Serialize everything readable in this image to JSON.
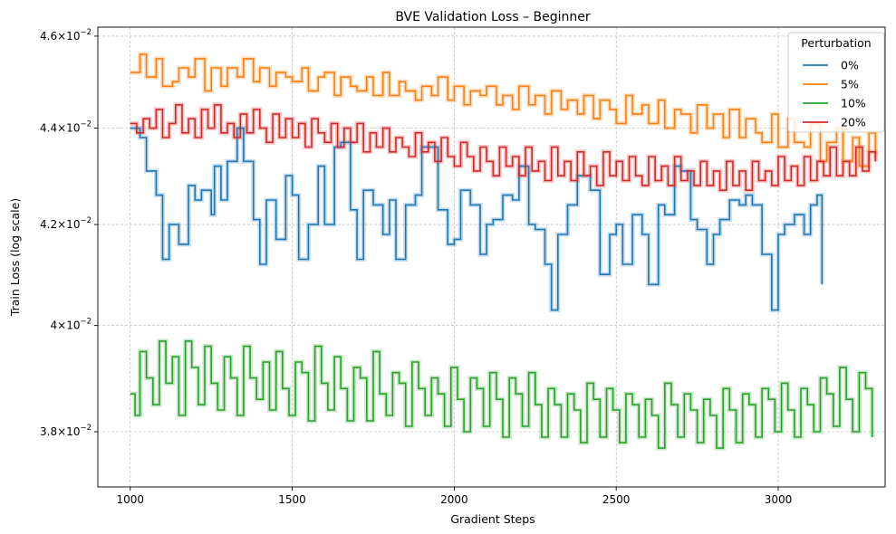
{
  "chart_data": {
    "type": "line",
    "title": "BVE Validation Loss – Beginner",
    "xlabel": "Gradient Steps",
    "ylabel": "Train Loss (log scale)",
    "yscale": "log",
    "xlim": [
      900,
      3330
    ],
    "ylim": [
      0.037,
      0.0462
    ],
    "grid": true,
    "legend_title": "Perturbation",
    "legend_position": "top-right",
    "x_ticks": [
      {
        "value": 1000,
        "label": "1000"
      },
      {
        "value": 1500,
        "label": "1500"
      },
      {
        "value": 2000,
        "label": "2000"
      },
      {
        "value": 2500,
        "label": "2500"
      },
      {
        "value": 3000,
        "label": "3000"
      }
    ],
    "y_ticks": [
      {
        "value": 0.038,
        "mantissa": "3.8",
        "label": "3.8×10⁻²"
      },
      {
        "value": 0.04,
        "mantissa": "4",
        "label": "4×10⁻²"
      },
      {
        "value": 0.042,
        "mantissa": "4.2",
        "label": "4.2×10⁻²"
      },
      {
        "value": 0.044,
        "mantissa": "4.4",
        "label": "4.4×10⁻²"
      },
      {
        "value": 0.046,
        "mantissa": "4.6",
        "label": "4.6×10⁻²"
      }
    ],
    "y_tick_base": "10",
    "y_tick_exponent": "−2",
    "series": [
      {
        "name": "0%",
        "color": "#1f77b4",
        "x": [
          1000,
          1030,
          1050,
          1080,
          1100,
          1120,
          1150,
          1180,
          1200,
          1220,
          1250,
          1260,
          1280,
          1300,
          1330,
          1350,
          1380,
          1400,
          1420,
          1450,
          1480,
          1500,
          1520,
          1550,
          1580,
          1600,
          1630,
          1650,
          1680,
          1700,
          1720,
          1750,
          1780,
          1800,
          1820,
          1850,
          1880,
          1900,
          1920,
          1950,
          1980,
          2000,
          2020,
          2050,
          2080,
          2100,
          2120,
          2150,
          2180,
          2200,
          2230,
          2250,
          2280,
          2300,
          2320,
          2350,
          2380,
          2400,
          2420,
          2450,
          2480,
          2500,
          2520,
          2550,
          2580,
          2600,
          2630,
          2650,
          2680,
          2700,
          2730,
          2750,
          2780,
          2800,
          2820,
          2850,
          2880,
          2900,
          2920,
          2950,
          2980,
          3000,
          3020,
          3050,
          3080,
          3100,
          3120,
          3135
        ],
        "values": [
          0.044,
          0.0438,
          0.0431,
          0.0426,
          0.0413,
          0.042,
          0.0416,
          0.0428,
          0.0425,
          0.0427,
          0.0422,
          0.0432,
          0.0425,
          0.0433,
          0.044,
          0.0433,
          0.0421,
          0.0412,
          0.0425,
          0.0417,
          0.043,
          0.0426,
          0.0413,
          0.042,
          0.0432,
          0.042,
          0.0436,
          0.0437,
          0.0423,
          0.0413,
          0.0427,
          0.0424,
          0.0418,
          0.0425,
          0.0413,
          0.0424,
          0.0426,
          0.0436,
          0.0436,
          0.0423,
          0.0416,
          0.0417,
          0.0427,
          0.0424,
          0.0414,
          0.042,
          0.0421,
          0.0426,
          0.0425,
          0.0432,
          0.042,
          0.0419,
          0.0412,
          0.0403,
          0.0418,
          0.0424,
          0.043,
          0.043,
          0.0427,
          0.041,
          0.0418,
          0.042,
          0.0412,
          0.0422,
          0.0418,
          0.0408,
          0.0424,
          0.0422,
          0.0432,
          0.0431,
          0.0421,
          0.0419,
          0.0412,
          0.0418,
          0.0421,
          0.0425,
          0.0424,
          0.0426,
          0.0424,
          0.0414,
          0.0403,
          0.0418,
          0.042,
          0.0422,
          0.0418,
          0.0424,
          0.0426,
          0.0408
        ]
      },
      {
        "name": "5%",
        "color": "#ff7f0e",
        "x": [
          1000,
          1030,
          1050,
          1080,
          1100,
          1130,
          1150,
          1180,
          1200,
          1230,
          1250,
          1280,
          1300,
          1330,
          1350,
          1380,
          1400,
          1430,
          1450,
          1480,
          1500,
          1530,
          1550,
          1580,
          1600,
          1630,
          1650,
          1680,
          1700,
          1730,
          1750,
          1780,
          1800,
          1830,
          1850,
          1880,
          1900,
          1930,
          1950,
          1980,
          2000,
          2030,
          2050,
          2080,
          2100,
          2130,
          2150,
          2180,
          2200,
          2230,
          2250,
          2280,
          2300,
          2330,
          2350,
          2380,
          2400,
          2430,
          2450,
          2480,
          2500,
          2530,
          2550,
          2580,
          2600,
          2630,
          2650,
          2680,
          2700,
          2730,
          2750,
          2780,
          2800,
          2830,
          2850,
          2880,
          2900,
          2930,
          2950,
          2980,
          3000,
          3030,
          3050,
          3080,
          3100,
          3130,
          3150,
          3180,
          3200,
          3230,
          3250,
          3280,
          3300
        ],
        "values": [
          0.0452,
          0.0456,
          0.0451,
          0.0455,
          0.0449,
          0.045,
          0.0453,
          0.0451,
          0.0455,
          0.0448,
          0.0453,
          0.0449,
          0.0453,
          0.0451,
          0.0455,
          0.045,
          0.0453,
          0.0449,
          0.0452,
          0.0451,
          0.045,
          0.0453,
          0.0448,
          0.0451,
          0.0452,
          0.0447,
          0.0451,
          0.0449,
          0.0448,
          0.0451,
          0.0447,
          0.0452,
          0.0447,
          0.045,
          0.0448,
          0.0446,
          0.0449,
          0.0447,
          0.0451,
          0.0446,
          0.0449,
          0.0445,
          0.0448,
          0.0447,
          0.0449,
          0.0445,
          0.0447,
          0.0444,
          0.0449,
          0.0445,
          0.0447,
          0.0443,
          0.0448,
          0.0444,
          0.0446,
          0.0443,
          0.0447,
          0.0442,
          0.0446,
          0.0444,
          0.0441,
          0.0447,
          0.0443,
          0.0445,
          0.0441,
          0.0446,
          0.044,
          0.0444,
          0.0443,
          0.0439,
          0.0445,
          0.044,
          0.0443,
          0.0438,
          0.0444,
          0.0438,
          0.0442,
          0.0439,
          0.0437,
          0.0443,
          0.0436,
          0.0442,
          0.0437,
          0.0436,
          0.0441,
          0.0433,
          0.0437,
          0.044,
          0.0433,
          0.0438,
          0.0432,
          0.0439,
          0.0434
        ]
      },
      {
        "name": "10%",
        "color": "#2ca02c",
        "x": [
          1000,
          1015,
          1030,
          1050,
          1070,
          1090,
          1110,
          1130,
          1150,
          1170,
          1190,
          1210,
          1230,
          1250,
          1270,
          1290,
          1310,
          1330,
          1350,
          1370,
          1390,
          1410,
          1430,
          1450,
          1470,
          1490,
          1510,
          1530,
          1550,
          1570,
          1590,
          1610,
          1630,
          1650,
          1670,
          1690,
          1710,
          1730,
          1750,
          1770,
          1790,
          1810,
          1830,
          1850,
          1870,
          1890,
          1910,
          1930,
          1950,
          1970,
          1990,
          2010,
          2030,
          2050,
          2070,
          2090,
          2110,
          2130,
          2150,
          2170,
          2190,
          2210,
          2230,
          2250,
          2270,
          2290,
          2310,
          2330,
          2350,
          2370,
          2390,
          2410,
          2430,
          2450,
          2470,
          2490,
          2510,
          2530,
          2550,
          2570,
          2590,
          2610,
          2630,
          2650,
          2670,
          2690,
          2710,
          2730,
          2750,
          2770,
          2790,
          2810,
          2830,
          2850,
          2870,
          2890,
          2910,
          2930,
          2950,
          2970,
          2990,
          3010,
          3030,
          3050,
          3070,
          3090,
          3110,
          3130,
          3150,
          3170,
          3190,
          3210,
          3230,
          3250,
          3270,
          3290
        ],
        "values": [
          0.0387,
          0.0383,
          0.0395,
          0.039,
          0.0385,
          0.0397,
          0.0389,
          0.0394,
          0.0383,
          0.0397,
          0.0392,
          0.0385,
          0.0396,
          0.0389,
          0.0384,
          0.0394,
          0.039,
          0.0383,
          0.0396,
          0.039,
          0.0386,
          0.0393,
          0.0384,
          0.0395,
          0.0388,
          0.0383,
          0.0393,
          0.0391,
          0.0382,
          0.0396,
          0.0389,
          0.0384,
          0.0394,
          0.0388,
          0.0382,
          0.0392,
          0.039,
          0.0382,
          0.0395,
          0.0387,
          0.0383,
          0.0391,
          0.0389,
          0.0381,
          0.0393,
          0.0388,
          0.0383,
          0.039,
          0.0387,
          0.0381,
          0.0392,
          0.0386,
          0.038,
          0.039,
          0.0388,
          0.0381,
          0.0391,
          0.0386,
          0.0379,
          0.039,
          0.0387,
          0.0381,
          0.0391,
          0.0385,
          0.0379,
          0.0388,
          0.0385,
          0.0379,
          0.0387,
          0.0384,
          0.0378,
          0.0389,
          0.0386,
          0.0379,
          0.0388,
          0.0384,
          0.0378,
          0.0387,
          0.0385,
          0.0379,
          0.0386,
          0.0383,
          0.0377,
          0.0389,
          0.0385,
          0.0379,
          0.0387,
          0.0384,
          0.0378,
          0.0386,
          0.0383,
          0.0377,
          0.0388,
          0.0384,
          0.0378,
          0.0387,
          0.0385,
          0.0379,
          0.0388,
          0.0386,
          0.038,
          0.0389,
          0.0384,
          0.0379,
          0.0388,
          0.0385,
          0.038,
          0.039,
          0.0387,
          0.0381,
          0.0392,
          0.0386,
          0.038,
          0.0391,
          0.0388,
          0.0379
        ]
      },
      {
        "name": "20%",
        "color": "#d62728",
        "x": [
          1000,
          1020,
          1040,
          1060,
          1080,
          1100,
          1120,
          1140,
          1160,
          1180,
          1200,
          1220,
          1240,
          1260,
          1280,
          1300,
          1320,
          1340,
          1360,
          1380,
          1400,
          1420,
          1440,
          1460,
          1480,
          1500,
          1520,
          1540,
          1560,
          1580,
          1600,
          1620,
          1640,
          1660,
          1680,
          1700,
          1720,
          1740,
          1760,
          1780,
          1800,
          1820,
          1840,
          1860,
          1880,
          1900,
          1920,
          1940,
          1960,
          1980,
          2000,
          2020,
          2040,
          2060,
          2080,
          2100,
          2120,
          2140,
          2160,
          2180,
          2200,
          2220,
          2240,
          2260,
          2280,
          2300,
          2320,
          2340,
          2360,
          2380,
          2400,
          2420,
          2440,
          2460,
          2480,
          2500,
          2520,
          2540,
          2560,
          2580,
          2600,
          2620,
          2640,
          2660,
          2680,
          2700,
          2720,
          2740,
          2760,
          2780,
          2800,
          2820,
          2840,
          2860,
          2880,
          2900,
          2920,
          2940,
          2960,
          2980,
          3000,
          3020,
          3040,
          3060,
          3080,
          3100,
          3120,
          3140,
          3160,
          3180,
          3200,
          3220,
          3240,
          3260,
          3280,
          3300
        ],
        "values": [
          0.0441,
          0.0439,
          0.0442,
          0.044,
          0.0444,
          0.0438,
          0.0441,
          0.0445,
          0.0439,
          0.0442,
          0.0438,
          0.0444,
          0.044,
          0.0445,
          0.0439,
          0.0441,
          0.0438,
          0.0443,
          0.0439,
          0.0444,
          0.044,
          0.0437,
          0.0443,
          0.0438,
          0.0442,
          0.0438,
          0.0441,
          0.0436,
          0.0442,
          0.0439,
          0.0437,
          0.0441,
          0.0436,
          0.044,
          0.0437,
          0.0441,
          0.0435,
          0.0439,
          0.0436,
          0.044,
          0.0435,
          0.0438,
          0.0436,
          0.0434,
          0.0439,
          0.0435,
          0.0437,
          0.0433,
          0.0438,
          0.0434,
          0.0432,
          0.0437,
          0.0434,
          0.0431,
          0.0436,
          0.0433,
          0.043,
          0.0436,
          0.0432,
          0.0434,
          0.043,
          0.0436,
          0.0431,
          0.0433,
          0.0429,
          0.0436,
          0.043,
          0.0433,
          0.0429,
          0.0435,
          0.043,
          0.0432,
          0.0428,
          0.0435,
          0.043,
          0.0433,
          0.0429,
          0.0434,
          0.043,
          0.0428,
          0.0434,
          0.0429,
          0.0432,
          0.0428,
          0.0434,
          0.0429,
          0.0431,
          0.0428,
          0.0433,
          0.0428,
          0.0431,
          0.0427,
          0.0433,
          0.0428,
          0.0431,
          0.0427,
          0.0433,
          0.0429,
          0.0431,
          0.0428,
          0.0434,
          0.0429,
          0.0432,
          0.0428,
          0.0434,
          0.0429,
          0.0433,
          0.043,
          0.0436,
          0.043,
          0.0433,
          0.043,
          0.0436,
          0.0431,
          0.0435,
          0.0433
        ]
      }
    ]
  }
}
